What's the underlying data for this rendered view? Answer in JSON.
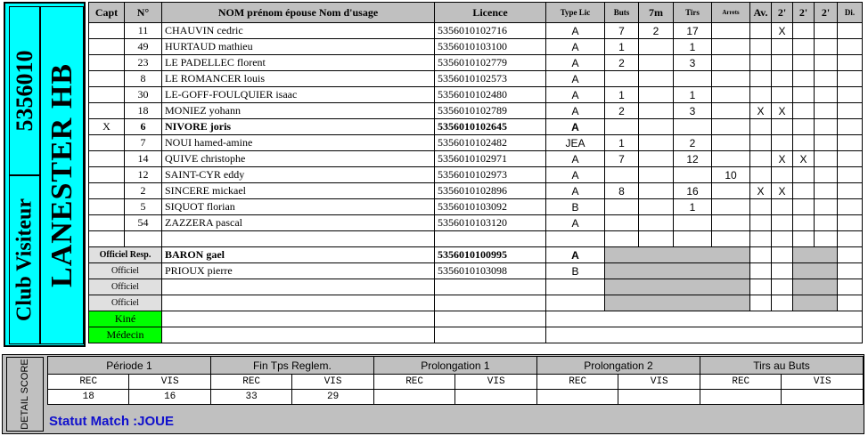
{
  "club": {
    "code": "5356010",
    "type_label": "Club Visiteur",
    "name": "LANESTER HB"
  },
  "headers": {
    "capt": "Capt",
    "num": "N°",
    "nom": "NOM prénom épouse Nom d'usage",
    "licence": "Licence",
    "type_lic": "Type Lic",
    "buts": "Buts",
    "sept_m": "7m",
    "tirs": "Tirs",
    "arrets": "Arrets",
    "av": "Av.",
    "two_min_1": "2'",
    "two_min_2": "2'",
    "two_min_3": "2'",
    "di": "Di."
  },
  "players": [
    {
      "capt": "",
      "num": "11",
      "name": "CHAUVIN cedric",
      "licence": "5356010102716",
      "type": "A",
      "buts": "7",
      "sept_m": "2",
      "tirs": "17",
      "arrets": "",
      "av": "",
      "m1": "X",
      "m2": "",
      "m3": "",
      "di": "",
      "bold": false
    },
    {
      "capt": "",
      "num": "49",
      "name": "HURTAUD mathieu",
      "licence": "5356010103100",
      "type": "A",
      "buts": "1",
      "sept_m": "",
      "tirs": "1",
      "arrets": "",
      "av": "",
      "m1": "",
      "m2": "",
      "m3": "",
      "di": "",
      "bold": false
    },
    {
      "capt": "",
      "num": "23",
      "name": "LE PADELLEC florent",
      "licence": "5356010102779",
      "type": "A",
      "buts": "2",
      "sept_m": "",
      "tirs": "3",
      "arrets": "",
      "av": "",
      "m1": "",
      "m2": "",
      "m3": "",
      "di": "",
      "bold": false
    },
    {
      "capt": "",
      "num": "8",
      "name": "LE ROMANCER louis",
      "licence": "5356010102573",
      "type": "A",
      "buts": "",
      "sept_m": "",
      "tirs": "",
      "arrets": "",
      "av": "",
      "m1": "",
      "m2": "",
      "m3": "",
      "di": "",
      "bold": false
    },
    {
      "capt": "",
      "num": "30",
      "name": "LE-GOFF-FOULQUIER isaac",
      "licence": "5356010102480",
      "type": "A",
      "buts": "1",
      "sept_m": "",
      "tirs": "1",
      "arrets": "",
      "av": "",
      "m1": "",
      "m2": "",
      "m3": "",
      "di": "",
      "bold": false
    },
    {
      "capt": "",
      "num": "18",
      "name": "MONIEZ yohann",
      "licence": "5356010102789",
      "type": "A",
      "buts": "2",
      "sept_m": "",
      "tirs": "3",
      "arrets": "",
      "av": "X",
      "m1": "X",
      "m2": "",
      "m3": "",
      "di": "",
      "bold": false
    },
    {
      "capt": "X",
      "num": "6",
      "name": "NIVORE joris",
      "licence": "5356010102645",
      "type": "A",
      "buts": "",
      "sept_m": "",
      "tirs": "",
      "arrets": "",
      "av": "",
      "m1": "",
      "m2": "",
      "m3": "",
      "di": "",
      "bold": true
    },
    {
      "capt": "",
      "num": "7",
      "name": "NOUI hamed-amine",
      "licence": "5356010102482",
      "type": "JEA",
      "buts": "1",
      "sept_m": "",
      "tirs": "2",
      "arrets": "",
      "av": "",
      "m1": "",
      "m2": "",
      "m3": "",
      "di": "",
      "bold": false
    },
    {
      "capt": "",
      "num": "14",
      "name": "QUIVE christophe",
      "licence": "5356010102971",
      "type": "A",
      "buts": "7",
      "sept_m": "",
      "tirs": "12",
      "arrets": "",
      "av": "",
      "m1": "X",
      "m2": "X",
      "m3": "",
      "di": "",
      "bold": false
    },
    {
      "capt": "",
      "num": "12",
      "name": "SAINT-CYR eddy",
      "licence": "5356010102973",
      "type": "A",
      "buts": "",
      "sept_m": "",
      "tirs": "",
      "arrets": "10",
      "av": "",
      "m1": "",
      "m2": "",
      "m3": "",
      "di": "",
      "bold": false
    },
    {
      "capt": "",
      "num": "2",
      "name": "SINCERE mickael",
      "licence": "5356010102896",
      "type": "A",
      "buts": "8",
      "sept_m": "",
      "tirs": "16",
      "arrets": "",
      "av": "X",
      "m1": "X",
      "m2": "",
      "m3": "",
      "di": "",
      "bold": false
    },
    {
      "capt": "",
      "num": "5",
      "name": "SIQUOT florian",
      "licence": "5356010103092",
      "type": "B",
      "buts": "",
      "sept_m": "",
      "tirs": "1",
      "arrets": "",
      "av": "",
      "m1": "",
      "m2": "",
      "m3": "",
      "di": "",
      "bold": false
    },
    {
      "capt": "",
      "num": "54",
      "name": "ZAZZERA pascal",
      "licence": "5356010103120",
      "type": "A",
      "buts": "",
      "sept_m": "",
      "tirs": "",
      "arrets": "",
      "av": "",
      "m1": "",
      "m2": "",
      "m3": "",
      "di": "",
      "bold": false
    }
  ],
  "officials": [
    {
      "role": "Officiel Resp.",
      "name": "BARON gael",
      "licence": "5356010100995",
      "type": "A",
      "bold": true
    },
    {
      "role": "Officiel",
      "name": "PRIOUX pierre",
      "licence": "5356010103098",
      "type": "B",
      "bold": false
    },
    {
      "role": "Officiel",
      "name": "",
      "licence": "",
      "type": "",
      "bold": false
    },
    {
      "role": "Officiel",
      "name": "",
      "licence": "",
      "type": "",
      "bold": false
    }
  ],
  "staff": [
    {
      "role": "Kiné"
    },
    {
      "role": "Médecin"
    }
  ],
  "score": {
    "side_label": "DETAIL SCORE",
    "rec_label": "REC",
    "vis_label": "VIS",
    "periods": [
      {
        "label": "Période 1",
        "rec": "18",
        "vis": "16"
      },
      {
        "label": "Fin Tps Reglem.",
        "rec": "33",
        "vis": "29"
      },
      {
        "label": "Prolongation 1",
        "rec": "",
        "vis": ""
      },
      {
        "label": "Prolongation 2",
        "rec": "",
        "vis": ""
      },
      {
        "label": "Tirs au Buts",
        "rec": "",
        "vis": ""
      }
    ]
  },
  "status": "Statut Match :JOUE"
}
